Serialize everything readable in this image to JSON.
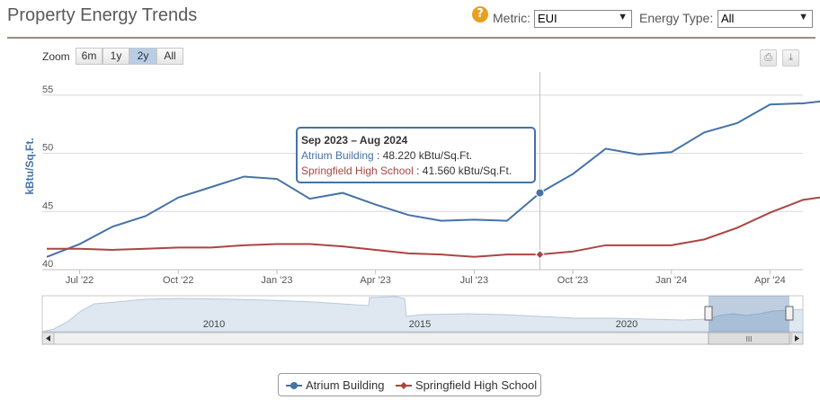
{
  "header": {
    "title": "Property Energy Trends",
    "help_icon": "?",
    "metric_label": "Metric:",
    "metric_value": "EUI",
    "energy_type_label": "Energy Type:",
    "energy_type_value": "All"
  },
  "zoom": {
    "label": "Zoom",
    "buttons": [
      "6m",
      "1y",
      "2y",
      "All"
    ],
    "active": "2y"
  },
  "toolbar": {
    "print_icon": "printer-icon",
    "export_icon": "download-icon"
  },
  "tooltip": {
    "header": "Sep 2023 – Aug 2024",
    "lines": [
      {
        "name": "Atrium Building",
        "sep": " : ",
        "value": "48.220 kBtu/Sq.Ft."
      },
      {
        "name": "Springfield High School",
        "sep": " : ",
        "value": "41.560 kBtu/Sq.Ft."
      }
    ]
  },
  "navigator": {
    "labels": [
      "2010",
      "2015",
      "2020"
    ],
    "scroll_grip": "III"
  },
  "colors": {
    "series1": "#4572a7",
    "series2": "#aa4643",
    "grid": "#d8d8d8",
    "rule": "#9b8e80"
  },
  "chart_data": {
    "type": "line",
    "ylabel": "kBtu/Sq.Ft.",
    "ylim": [
      40,
      57
    ],
    "yticks": [
      40,
      45,
      50,
      55
    ],
    "x_start_month_index": 0,
    "xtick_labels": [
      "Jul '22",
      "Oct '22",
      "Jan '23",
      "Apr '23",
      "Jul '23",
      "Oct '23",
      "Jan '24",
      "Apr '24"
    ],
    "xtick_month_index": [
      1,
      4,
      7,
      10,
      13,
      16,
      19,
      22
    ],
    "x_range": [
      0,
      23
    ],
    "highlight_month_index": 15,
    "grid": true,
    "legend_position": "bottom-center",
    "series": [
      {
        "name": "Atrium Building",
        "values": [
          41.1,
          42.2,
          43.7,
          44.6,
          46.2,
          47.1,
          48.0,
          47.8,
          46.1,
          46.6,
          45.6,
          44.7,
          44.2,
          44.3,
          44.2,
          46.6,
          48.22,
          50.4,
          49.9,
          50.1,
          51.8,
          52.6,
          54.2,
          54.3,
          54.6
        ]
      },
      {
        "name": "Springfield High School",
        "values": [
          41.8,
          41.8,
          41.7,
          41.8,
          41.9,
          41.9,
          42.1,
          42.2,
          42.2,
          42.0,
          41.7,
          41.4,
          41.3,
          41.1,
          41.3,
          41.3,
          41.56,
          42.1,
          42.1,
          42.1,
          42.6,
          43.6,
          44.9,
          46.0,
          46.4
        ]
      }
    ]
  }
}
